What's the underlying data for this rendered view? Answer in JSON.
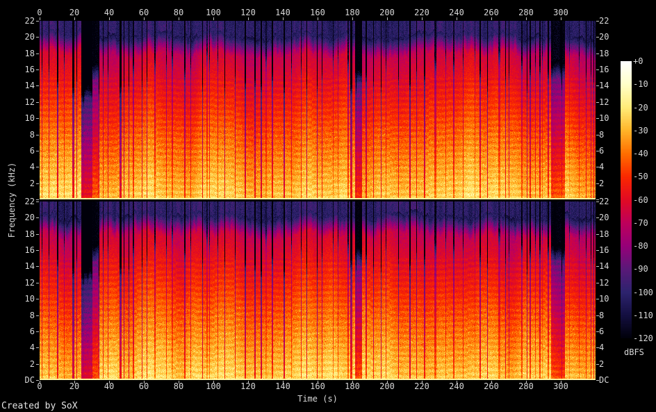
{
  "window": {
    "background": "#000000",
    "credit": "Created by SoX"
  },
  "chart_data": {
    "type": "heatmap",
    "subtype": "stereo-audio-spectrogram",
    "title": "",
    "xlabel": "Time (s)",
    "ylabel": "Frequency (kHz)",
    "x_range_s": [
      0,
      320
    ],
    "x_tick_step_s": 20,
    "x_ticks": [
      "0",
      "20",
      "40",
      "60",
      "80",
      "100",
      "120",
      "140",
      "160",
      "180",
      "200",
      "220",
      "240",
      "260",
      "280",
      "300"
    ],
    "y_range_khz": [
      0,
      22
    ],
    "channels": [
      "channel-1-top",
      "channel-2-bottom"
    ],
    "y_ticks_channel1": [
      "22",
      "20",
      "18",
      "16",
      "14",
      "12",
      "10",
      "8",
      "6",
      "4",
      "2"
    ],
    "y_ticks_channel2": [
      "22",
      "20",
      "18",
      "16",
      "14",
      "12",
      "10",
      "8",
      "6",
      "4",
      "2",
      "DC"
    ],
    "colorbar": {
      "label": "dBFS",
      "range_db": [
        0,
        -120
      ],
      "ticks": [
        "+0",
        "-10",
        "-20",
        "-30",
        "-40",
        "-50",
        "-60",
        "-70",
        "-80",
        "-90",
        "-100",
        "-110",
        "-120"
      ],
      "palette": [
        {
          "db": 0,
          "color": "#ffffff"
        },
        {
          "db": -10,
          "color": "#ffffc8"
        },
        {
          "db": -20,
          "color": "#ffeb78"
        },
        {
          "db": -30,
          "color": "#ffb428"
        },
        {
          "db": -40,
          "color": "#ff6e00"
        },
        {
          "db": -50,
          "color": "#fa2800"
        },
        {
          "db": -60,
          "color": "#e10a23"
        },
        {
          "db": -70,
          "color": "#be005a"
        },
        {
          "db": -80,
          "color": "#960078"
        },
        {
          "db": -90,
          "color": "#5a1978"
        },
        {
          "db": -100,
          "color": "#2d236e"
        },
        {
          "db": -110,
          "color": "#140f41"
        },
        {
          "db": -120,
          "color": "#00000a"
        }
      ]
    },
    "features": {
      "duration_s": 320,
      "signal_top_khz": 20.2,
      "noise_floor_db": -96,
      "quiet_regions": [
        {
          "start_s": 23.8,
          "end_s": 25.4,
          "level": 0.03
        },
        {
          "start_s": 25.4,
          "end_s": 30.5,
          "level": 0.1
        },
        {
          "start_s": 30.5,
          "end_s": 34.5,
          "level": 0.45
        },
        {
          "start_s": 181.5,
          "end_s": 185.5,
          "level": 0.35
        },
        {
          "start_s": 294.5,
          "end_s": 302.5,
          "level": 0.42
        }
      ],
      "stripe_seed": 1337
    }
  }
}
